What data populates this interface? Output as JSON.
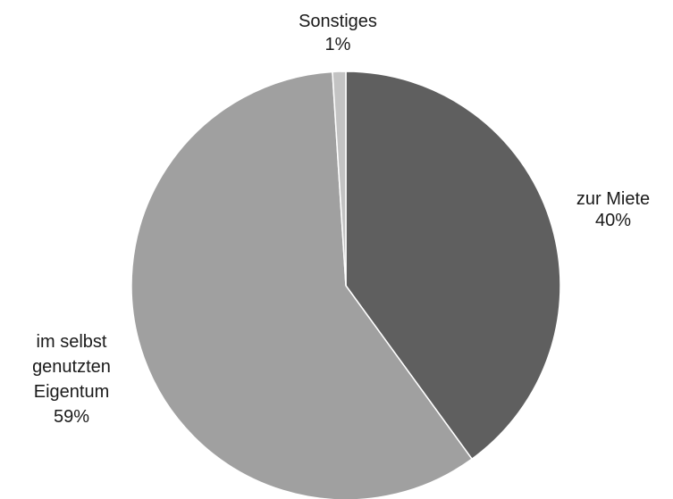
{
  "chart_data": {
    "type": "pie",
    "title": "",
    "start_angle_deg": 0,
    "direction": "clockwise",
    "slices": [
      {
        "name": "zur Miete",
        "value": 40,
        "label_lines": [
          "zur Miete"
        ],
        "pct_label": "40%",
        "color": "#5f5f5f"
      },
      {
        "name": "im selbst genutzten Eigentum",
        "value": 59,
        "label_lines": [
          "im selbst",
          "genutzten",
          "Eigentum"
        ],
        "pct_label": "59%",
        "color": "#a0a0a0"
      },
      {
        "name": "Sonstiges",
        "value": 1,
        "label_lines": [
          "Sonstiges"
        ],
        "pct_label": "1%",
        "color": "#c3c3c3"
      }
    ],
    "legend": "none",
    "slice_border_color": "#ffffff"
  }
}
